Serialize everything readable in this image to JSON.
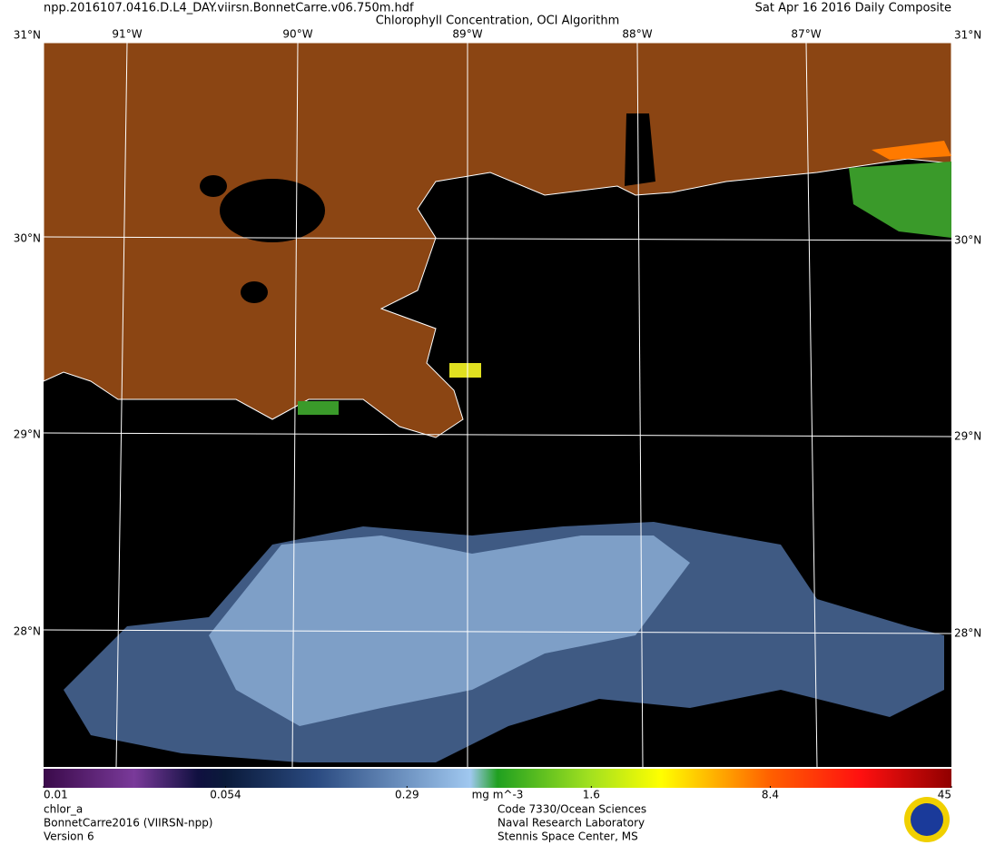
{
  "header": {
    "filename": "npp.2016107.0416.D.L4_DAY.viirsn.BonnetCarre.v06.750m.hdf",
    "title": "Chlorophyll Concentration, OCI Algorithm",
    "date": "Sat Apr 16 2016 Daily Composite"
  },
  "map": {
    "lon_labels": [
      "91°W",
      "90°W",
      "89°W",
      "88°W",
      "87°W"
    ],
    "lat_labels": [
      "31°N",
      "30°N",
      "29°N",
      "28°N"
    ]
  },
  "colorbar": {
    "lim": [
      0.01,
      45
    ],
    "log": true,
    "ticks": [
      0.01,
      0.054,
      0.29,
      1.6,
      8.4,
      45
    ],
    "unit": "mg m^-3"
  },
  "footer": {
    "left": [
      "chlor_a",
      "BonnetCarre2016 (VIIRSN-npp)",
      "Version 6"
    ],
    "center": [
      "Code 7330/Ocean Sciences",
      "Naval Research Laboratory",
      "Stennis Space Center, MS"
    ]
  }
}
